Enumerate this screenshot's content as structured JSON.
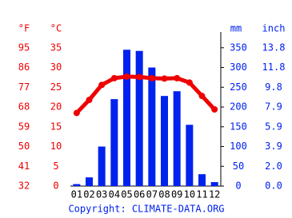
{
  "chart_data": {
    "type": "bar-line",
    "categories": [
      "01",
      "02",
      "03",
      "04",
      "05",
      "06",
      "07",
      "08",
      "09",
      "10",
      "11",
      "12"
    ],
    "series": [
      {
        "type": "bar",
        "axis": "y2",
        "color": "#0022ee",
        "values": [
          5,
          22,
          100,
          220,
          345,
          342,
          300,
          228,
          240,
          155,
          30,
          10
        ]
      },
      {
        "type": "line",
        "axis": "y",
        "color": "#ee0000",
        "values": [
          18.5,
          21.8,
          25.6,
          27.3,
          27.7,
          27.6,
          27.3,
          27.2,
          27.3,
          26.2,
          22.8,
          19.4
        ]
      }
    ],
    "y_label_f": "°F",
    "y_label": "°C",
    "y2_label": "mm",
    "y2_label_inch": "inch",
    "ylim": [
      0,
      39
    ],
    "yticks": [
      0,
      5,
      10,
      15,
      20,
      25,
      30,
      35
    ],
    "yticks_f": [
      {
        "value": 0,
        "label": "32"
      },
      {
        "value": 5,
        "label": "41"
      },
      {
        "value": 10,
        "label": "50"
      },
      {
        "value": 15,
        "label": "59"
      },
      {
        "value": 20,
        "label": "68"
      },
      {
        "value": 25,
        "label": "77"
      },
      {
        "value": 30,
        "label": "86"
      },
      {
        "value": 35,
        "label": "95"
      }
    ],
    "y2lim": [
      0,
      390
    ],
    "y2ticks": [
      0,
      50,
      100,
      150,
      200,
      250,
      300,
      350
    ],
    "y2ticks_inch": [
      {
        "value": 0,
        "label": "0.0"
      },
      {
        "value": 50,
        "label": "2.0"
      },
      {
        "value": 100,
        "label": "3.9"
      },
      {
        "value": 150,
        "label": "5.9"
      },
      {
        "value": 200,
        "label": "7.9"
      },
      {
        "value": 250,
        "label": "9.8"
      },
      {
        "value": 300,
        "label": "11.8"
      },
      {
        "value": 350,
        "label": "13.8"
      }
    ],
    "source": "Copyright: CLIMATE-DATA.ORG"
  }
}
